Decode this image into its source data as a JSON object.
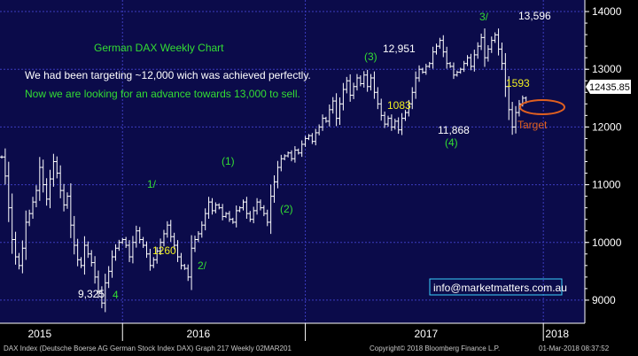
{
  "colors": {
    "plot_bg": "#0b0b4a",
    "grid": "#3c3cc0",
    "bars": "#ffffff",
    "price_tag_bg": "#ffffff",
    "price_tag_text": "#000000",
    "accent_green": "#33dd33",
    "accent_yellow": "#f0f020",
    "accent_orange": "#e06020",
    "white_text": "#ffffff",
    "email_border": "#3ad0ff"
  },
  "chart_data": {
    "type": "ohlc",
    "title": "German DAX Weekly Chart",
    "ylim": [
      8600,
      14200
    ],
    "yticks": [
      9000,
      10000,
      11000,
      12000,
      13000,
      14000
    ],
    "ytick_labels": [
      "9000",
      "10000",
      "11000",
      "12000",
      "13000",
      "14000"
    ],
    "x_range": [
      0,
      168
    ],
    "year_labels": [
      {
        "label": "2015",
        "x": 11
      },
      {
        "label": "2016",
        "x": 57
      },
      {
        "label": "2017",
        "x": 123
      },
      {
        "label": "2018",
        "x": 161
      }
    ],
    "year_boundaries": [
      35,
      88,
      157
    ],
    "last_price": "12435.85",
    "closes": [
      11480,
      11150,
      10600,
      10050,
      9750,
      9600,
      9900,
      10350,
      10500,
      10700,
      10900,
      11300,
      11000,
      10750,
      11100,
      11400,
      11200,
      10900,
      10650,
      10800,
      10300,
      9950,
      9700,
      9600,
      9950,
      9800,
      9650,
      9400,
      9150,
      8950,
      9300,
      9500,
      9750,
      9900,
      10000,
      10050,
      9950,
      9750,
      10000,
      10200,
      10050,
      9950,
      9800,
      9600,
      9700,
      9850,
      10000,
      10150,
      10300,
      10100,
      9950,
      9750,
      9600,
      9550,
      9400,
      9900,
      10050,
      10150,
      10300,
      10500,
      10700,
      10550,
      10650,
      10600,
      10450,
      10500,
      10400,
      10350,
      10550,
      10600,
      10700,
      10500,
      10400,
      10550,
      10700,
      10600,
      10500,
      10350,
      10800,
      11050,
      11300,
      11450,
      11500,
      11550,
      11450,
      11600,
      11550,
      11700,
      11800,
      11850,
      11750,
      11900,
      12000,
      12150,
      12100,
      12300,
      12450,
      12150,
      12400,
      12650,
      12800,
      12550,
      12700,
      12850,
      12750,
      12900,
      12700,
      12850,
      12600,
      12400,
      12200,
      12050,
      12150,
      12000,
      12100,
      11950,
      12150,
      12250,
      12400,
      12600,
      12850,
      13000,
      12950,
      13050,
      13100,
      13300,
      13400,
      13500,
      13300,
      13100,
      13050,
      12900,
      12950,
      13000,
      13100,
      13200,
      13050,
      13250,
      13400,
      13550,
      13200,
      13350,
      13500,
      13596,
      13350,
      13100,
      12700,
      12300,
      12000,
      12250,
      12400,
      12500,
      12436
    ],
    "annotations": {
      "subtitle_line1": "We had been targeting ~12,000 wich was achieved perfectly.",
      "subtitle_line2": "Now we are looking for an advance towards 13,000 to sell.",
      "low_2016_value": "9,325",
      "wave_4_2016": "4",
      "wave_1_2016": "1/",
      "wave_2_2016": "2/",
      "fib_1260": "1260",
      "wave_paren1": "(1)",
      "wave_paren2": "(2)",
      "wave_paren3": "(3)",
      "peak_12951": "12,951",
      "fib_1083": "1083",
      "trough_11868": "11,868",
      "wave_paren4": "(4)",
      "wave_3_2017": "3/",
      "peak_13596": "13,596",
      "fib_1593": "1593",
      "target": "Target",
      "email": "info@marketmatters.com.au"
    }
  },
  "footer": {
    "left": "DAX Index (Deutsche Boerse AG German Stock Index DAX) Graph 217  Weekly 02MAR201",
    "middle": "Copyright© 2018 Bloomberg Finance L.P.",
    "right": "01-Mar-2018 08:37:52"
  }
}
